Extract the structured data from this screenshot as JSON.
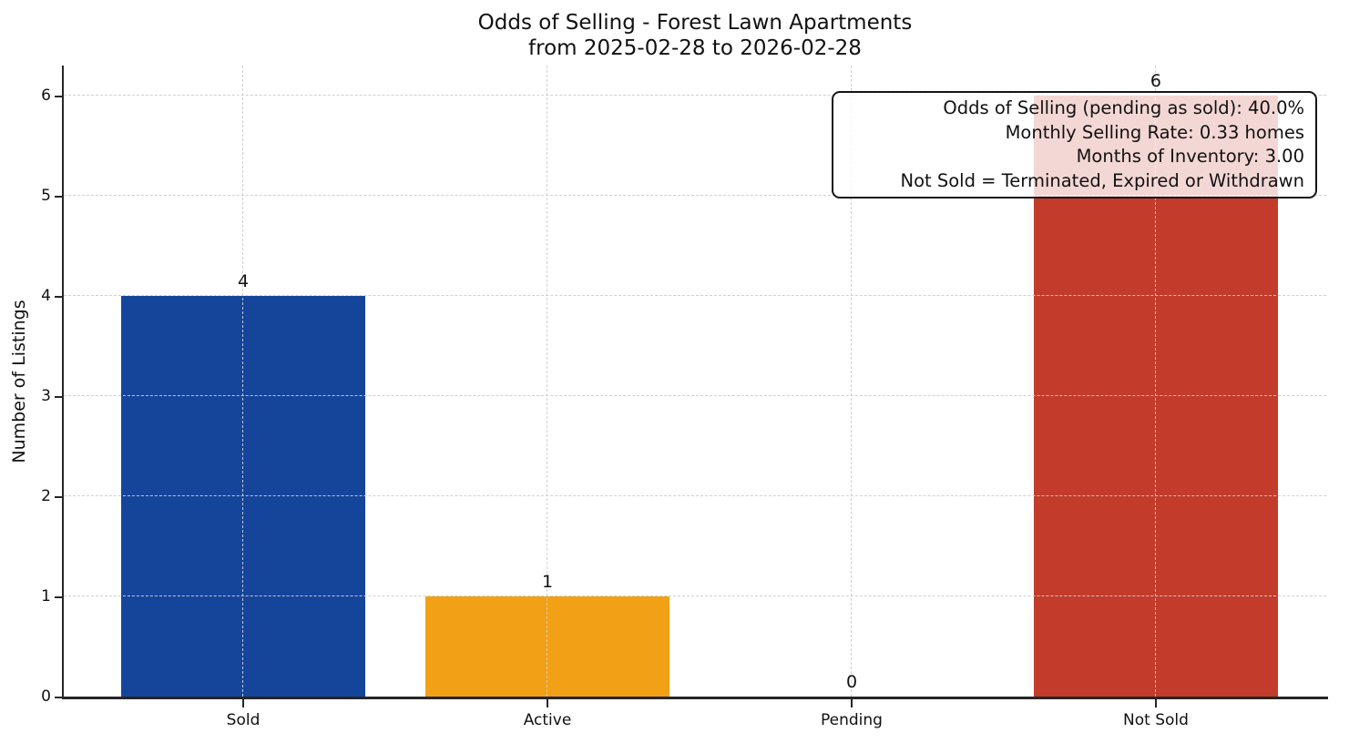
{
  "chart_data": {
    "type": "bar",
    "title": "Odds of Selling - Forest Lawn Apartments",
    "subtitle": "from 2025-02-28 to 2026-02-28",
    "ylabel": "Number of Listings",
    "xlabel": "",
    "categories": [
      "Sold",
      "Active",
      "Pending",
      "Not Sold"
    ],
    "values": [
      4,
      1,
      0,
      6
    ],
    "value_labels": [
      "4",
      "1",
      "0",
      "6"
    ],
    "bar_colors": [
      "#14459b",
      "#f2a016",
      null,
      "#c23b2b"
    ],
    "yticks": [
      0,
      1,
      2,
      3,
      4,
      5,
      6
    ],
    "ylim": [
      0,
      6.3
    ],
    "xlim": [
      -0.59,
      3.56
    ],
    "bar_width": 0.8,
    "grid": true,
    "grid_style": "dashed",
    "grid_above_bars": true,
    "legend": "none",
    "annotation_box": {
      "position": "top-right",
      "lines": [
        "Odds of Selling (pending as sold): 40.0%",
        "Monthly Selling Rate: 0.33 homes",
        "Months of Inventory: 3.00",
        "Not Sold = Terminated, Expired or Withdrawn"
      ]
    },
    "colors": {
      "sold_bar": "#14459b",
      "active_bar": "#f2a016",
      "not_sold_bar": "#c23b2b",
      "axis": "#262626",
      "gridline": "#d0d0d0",
      "text": "#111111",
      "annotation_background": "rgba(255,255,255,0.8)",
      "background": "#ffffff"
    }
  }
}
